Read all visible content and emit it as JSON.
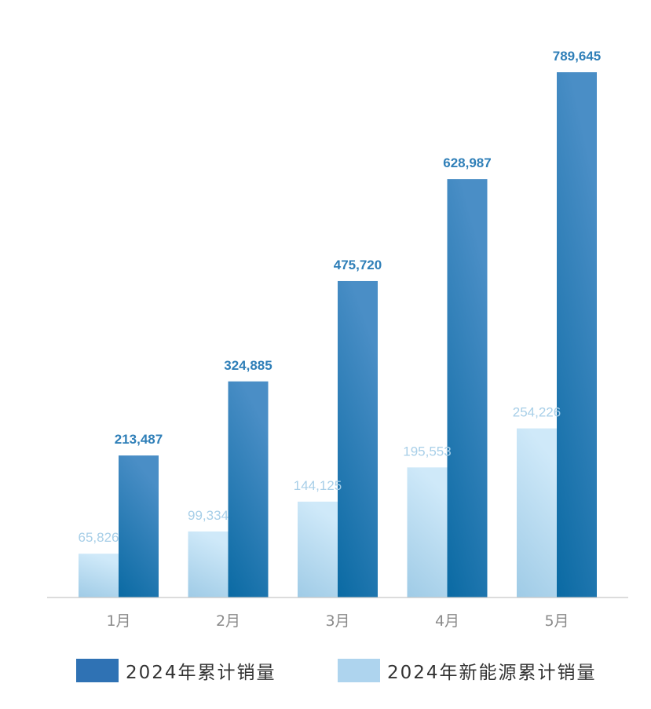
{
  "chart_data": {
    "type": "bar",
    "categories": [
      "1月",
      "2月",
      "3月",
      "4月",
      "5月"
    ],
    "series": [
      {
        "name": "2024年新能源累计销量",
        "values": [
          65826,
          99334,
          144125,
          195553,
          254226
        ],
        "labels": [
          "65,826",
          "99,334",
          "144,125",
          "195,553",
          "254,226"
        ],
        "color": "#aed4ee"
      },
      {
        "name": "2024年累计销量",
        "values": [
          213487,
          324885,
          475720,
          628987,
          789645
        ],
        "labels": [
          "213,487",
          "324,885",
          "475,720",
          "628,987",
          "789,645"
        ],
        "color": "#2873b3"
      }
    ],
    "title": "",
    "xlabel": "",
    "ylabel": "",
    "ylim": [
      0,
      789645
    ],
    "grid": false,
    "legend": "bottom"
  }
}
